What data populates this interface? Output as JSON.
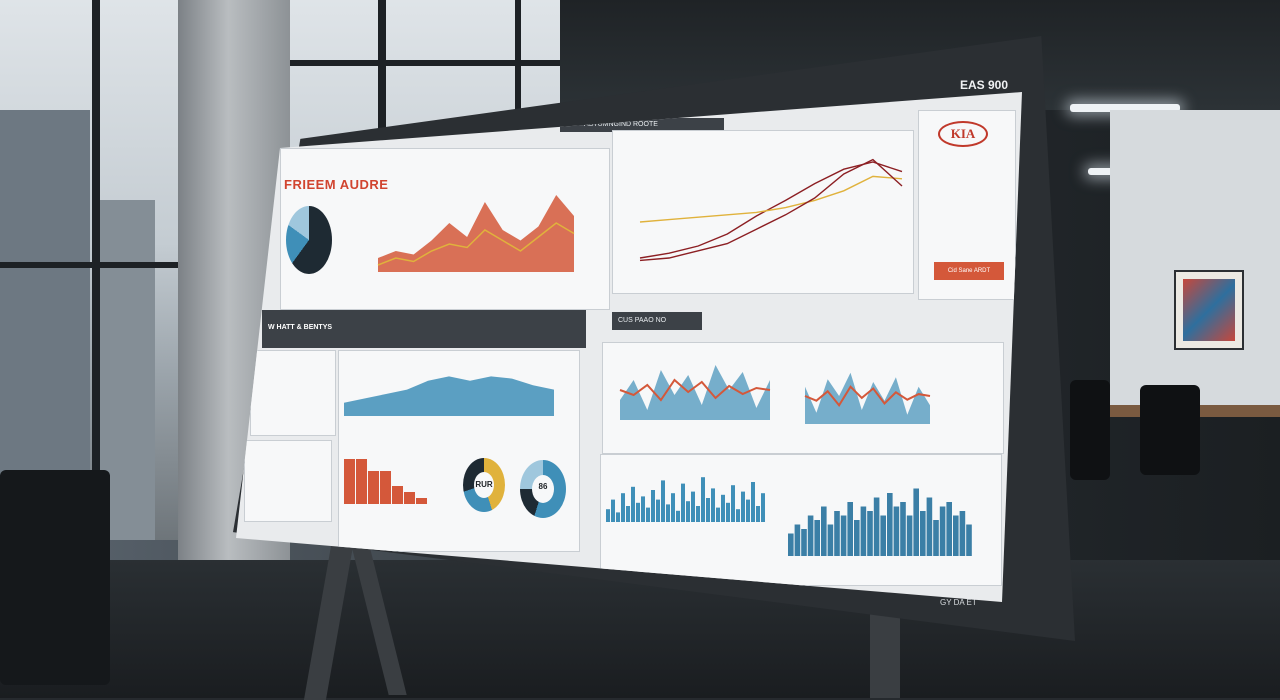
{
  "screen": {
    "id_label": "EAS 900",
    "header_label": "ASTUMNGIND ROOTE",
    "dashboard_title": "FRIEEM AUDRE",
    "brand_logo": "KIA",
    "section_label": "W HATT & BENTYS",
    "center_bar_label": "CUS PAAO NO",
    "cta_button": "Cid Sane ARDT",
    "donut_1_label": "RUR",
    "donut_2_label": "86",
    "bottom_label": "GY DA ET"
  },
  "colors": {
    "accent_orange": "#d4583a",
    "accent_blue": "#3f8fb8",
    "accent_yellow": "#e0b23c",
    "dark_red": "#8c1f23",
    "brand_red": "#c0392b"
  },
  "chart_data": [
    {
      "type": "area",
      "series": [
        {
          "values": [
            4,
            6,
            5,
            9,
            14,
            10,
            20,
            12,
            9,
            13,
            22,
            16
          ]
        },
        {
          "values": [
            2,
            4,
            3,
            6,
            8,
            7,
            12,
            9,
            6,
            10,
            14,
            11
          ]
        }
      ]
    },
    {
      "type": "line",
      "series": [
        {
          "values": [
            10,
            14,
            20,
            30,
            45,
            58,
            72,
            84,
            90,
            82
          ]
        },
        {
          "values": [
            40,
            42,
            44,
            46,
            48,
            52,
            58,
            66,
            78,
            76
          ]
        },
        {
          "values": [
            8,
            10,
            16,
            22,
            34,
            46,
            60,
            80,
            92,
            70
          ]
        }
      ]
    },
    {
      "type": "area",
      "series": [
        {
          "values": [
            6,
            8,
            10,
            12,
            16,
            18,
            16,
            18,
            17,
            14,
            12
          ]
        }
      ]
    },
    {
      "type": "bar",
      "values": [
        30,
        30,
        22,
        22,
        12,
        8,
        4
      ]
    },
    {
      "type": "pie",
      "values": [
        45,
        25,
        30
      ]
    },
    {
      "type": "pie",
      "values": [
        55,
        20,
        25
      ]
    },
    {
      "type": "bar",
      "values": [
        8,
        14,
        6,
        18,
        10,
        22,
        12,
        16,
        9,
        20,
        14,
        26,
        11,
        18,
        7,
        24,
        13,
        19,
        10,
        28,
        15,
        21,
        9,
        17,
        12,
        23,
        8,
        19,
        14,
        25,
        10,
        18
      ]
    },
    {
      "type": "bar",
      "values": [
        10,
        14,
        12,
        18,
        16,
        22,
        14,
        20,
        18,
        24,
        16,
        22,
        20,
        26,
        18,
        28,
        22,
        24,
        18,
        30,
        20,
        26,
        16,
        22,
        24,
        18,
        20,
        14
      ]
    }
  ]
}
